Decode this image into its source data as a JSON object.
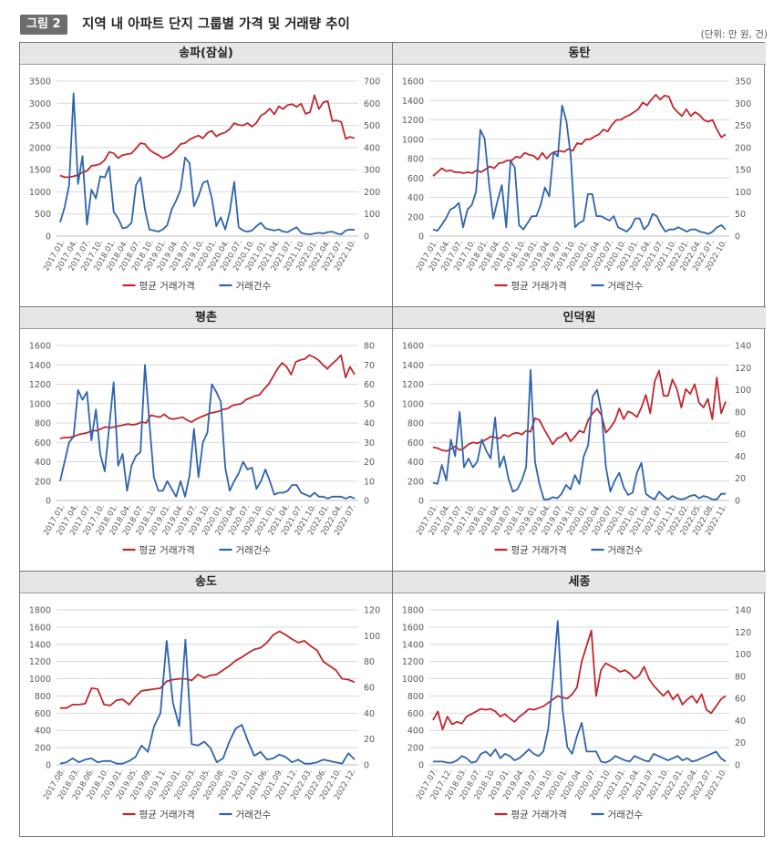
{
  "header": {
    "badge": "그림 2",
    "title": "지역 내 아파트 단지 그룹별 가격 및 거래량 추이",
    "unit": "(단위: 만 원, 건)"
  },
  "legend": {
    "price": "평균 거래가격",
    "count": "거래건수"
  },
  "colors": {
    "price": "#c0262d",
    "count": "#2e64ad"
  },
  "chart_data": [
    {
      "type": "line",
      "title": "송파(잠실)",
      "y_left": {
        "ticks": [
          0,
          500,
          1000,
          1500,
          2000,
          2500,
          3000,
          3500
        ],
        "max": 3500
      },
      "y_right": {
        "ticks": [
          0,
          100,
          200,
          300,
          400,
          500,
          600,
          700
        ],
        "max": 700
      },
      "x_ticks": [
        "2017.01.",
        "2017.04.",
        "2017.07.",
        "2017.10.",
        "2018.01.",
        "2018.04.",
        "2018.07.",
        "2018.10.",
        "2019.01.",
        "2019.04.",
        "2019.07.",
        "2019.10.",
        "2020.01.",
        "2020.04.",
        "2020.07.",
        "2020.10.",
        "2021.01.",
        "2021.04.",
        "2021.07.",
        "2021.10.",
        "2022.01.",
        "2022.04.",
        "2022.07.",
        "2022.10."
      ],
      "series": [
        {
          "name": "평균 거래가격",
          "axis": "left",
          "values": [
            1370,
            1330,
            1330,
            1350,
            1380,
            1440,
            1470,
            1590,
            1600,
            1630,
            1720,
            1900,
            1870,
            1760,
            1830,
            1850,
            1870,
            1980,
            2100,
            2080,
            1950,
            1880,
            1830,
            1760,
            1800,
            1860,
            1960,
            2080,
            2100,
            2180,
            2230,
            2270,
            2210,
            2330,
            2380,
            2250,
            2310,
            2340,
            2420,
            2550,
            2510,
            2500,
            2550,
            2470,
            2560,
            2720,
            2780,
            2880,
            2750,
            2930,
            2870,
            2960,
            2980,
            2920,
            2990,
            2760,
            2800,
            3180,
            2870,
            3020,
            3050,
            2600,
            2610,
            2580,
            2200,
            2240,
            2210
          ]
        },
        {
          "name": "거래건수",
          "axis": "right",
          "values": [
            62,
            130,
            230,
            645,
            235,
            362,
            52,
            210,
            170,
            270,
            265,
            315,
            110,
            80,
            35,
            40,
            60,
            230,
            265,
            120,
            30,
            25,
            20,
            30,
            50,
            120,
            160,
            210,
            355,
            330,
            135,
            180,
            240,
            250,
            170,
            45,
            85,
            30,
            110,
            245,
            40,
            25,
            20,
            25,
            45,
            60,
            35,
            30,
            25,
            30,
            20,
            18,
            30,
            40,
            15,
            10,
            8,
            12,
            15,
            12,
            18,
            20,
            12,
            8,
            25,
            30,
            28
          ]
        }
      ]
    },
    {
      "type": "line",
      "title": "동탄",
      "y_left": {
        "ticks": [
          0,
          200,
          400,
          600,
          800,
          1000,
          1200,
          1400,
          1600
        ],
        "max": 1600
      },
      "y_right": {
        "ticks": [
          0,
          50,
          100,
          150,
          200,
          250,
          300,
          350
        ],
        "max": 350
      },
      "x_ticks": [
        "2017.01.",
        "2017.04.",
        "2017.07.",
        "2017.10.",
        "2018.01.",
        "2018.04.",
        "2018.07.",
        "2018.10.",
        "2019.01.",
        "2019.04.",
        "2019.07.",
        "2019.10.",
        "2020.01.",
        "2020.04.",
        "2020.07.",
        "2020.10.",
        "2021.01.",
        "2021.04.",
        "2021.07.",
        "2021.10.",
        "2022.01.",
        "2022.04.",
        "2022.07.",
        "2022.10."
      ],
      "series": [
        {
          "name": "평균 거래가격",
          "axis": "left",
          "values": [
            620,
            660,
            700,
            670,
            680,
            660,
            660,
            650,
            660,
            650,
            680,
            660,
            690,
            720,
            700,
            750,
            760,
            780,
            780,
            820,
            810,
            860,
            840,
            830,
            790,
            860,
            800,
            850,
            870,
            880,
            870,
            900,
            880,
            960,
            950,
            1000,
            1000,
            1030,
            1050,
            1100,
            1080,
            1150,
            1200,
            1200,
            1230,
            1250,
            1280,
            1310,
            1380,
            1350,
            1410,
            1460,
            1410,
            1450,
            1440,
            1330,
            1280,
            1240,
            1310,
            1240,
            1280,
            1250,
            1200,
            1180,
            1200,
            1100,
            1020,
            1050
          ]
        },
        {
          "name": "거래건수",
          "axis": "right",
          "values": [
            15,
            12,
            25,
            40,
            60,
            65,
            75,
            20,
            60,
            70,
            100,
            240,
            220,
            120,
            40,
            80,
            115,
            20,
            170,
            155,
            25,
            15,
            30,
            45,
            45,
            70,
            110,
            90,
            190,
            180,
            295,
            260,
            180,
            20,
            30,
            35,
            95,
            95,
            45,
            45,
            40,
            35,
            45,
            20,
            15,
            10,
            20,
            40,
            40,
            15,
            25,
            50,
            45,
            25,
            10,
            15,
            15,
            20,
            15,
            10,
            15,
            15,
            10,
            8,
            5,
            10,
            20,
            25,
            15
          ]
        }
      ]
    },
    {
      "type": "line",
      "title": "평촌",
      "y_left": {
        "ticks": [
          0,
          200,
          400,
          600,
          800,
          1000,
          1200,
          1400,
          1600
        ],
        "max": 1600
      },
      "y_right": {
        "ticks": [
          0,
          10,
          20,
          30,
          40,
          50,
          60,
          70,
          80
        ],
        "max": 80
      },
      "x_ticks": [
        "2017.01.",
        "2017.04.",
        "2017.07.",
        "2017.10.",
        "2018.01.",
        "2018.04.",
        "2018.07.",
        "2018.10.",
        "2019.01.",
        "2019.04.",
        "2019.07.",
        "2019.10.",
        "2020.01.",
        "2020.04.",
        "2020.07.",
        "2020.10.",
        "2021.01.",
        "2021.04.",
        "2021.07.",
        "2021.10.",
        "2022.01.",
        "2022.04.",
        "2022.07."
      ],
      "series": [
        {
          "name": "평균 거래가격",
          "axis": "left",
          "values": [
            640,
            650,
            650,
            660,
            680,
            690,
            700,
            720,
            720,
            740,
            760,
            750,
            760,
            770,
            780,
            790,
            780,
            790,
            810,
            800,
            880,
            870,
            860,
            890,
            850,
            840,
            850,
            860,
            830,
            810,
            840,
            860,
            880,
            900,
            910,
            920,
            940,
            950,
            980,
            990,
            1000,
            1040,
            1060,
            1080,
            1090,
            1150,
            1200,
            1280,
            1360,
            1420,
            1380,
            1300,
            1430,
            1450,
            1460,
            1500,
            1480,
            1450,
            1400,
            1360,
            1410,
            1450,
            1500,
            1270,
            1380,
            1300
          ]
        },
        {
          "name": "거래건수",
          "axis": "right",
          "values": [
            10,
            20,
            30,
            33,
            57,
            52,
            56,
            31,
            47,
            24,
            15,
            38,
            61,
            18,
            24,
            5,
            18,
            23,
            25,
            70,
            40,
            12,
            5,
            5,
            10,
            6,
            2,
            10,
            2,
            13,
            37,
            12,
            30,
            35,
            60,
            56,
            51,
            17,
            5,
            10,
            14,
            20,
            16,
            17,
            6,
            10,
            16,
            10,
            3,
            4,
            4,
            5,
            8,
            8,
            4,
            3,
            2,
            4,
            2,
            2,
            1,
            2,
            2,
            2,
            1,
            2,
            1
          ]
        }
      ]
    },
    {
      "type": "line",
      "title": "인덕원",
      "y_left": {
        "ticks": [
          0,
          200,
          400,
          600,
          800,
          1000,
          1200,
          1400,
          1600
        ],
        "max": 1600
      },
      "y_right": {
        "ticks": [
          0,
          20,
          40,
          60,
          80,
          100,
          120,
          140
        ],
        "max": 140
      },
      "x_ticks": [
        "2017.01.",
        "2017.04.",
        "2017.07.",
        "2017.10.",
        "2018.01.",
        "2018.04.",
        "2018.07.",
        "2018.10.",
        "2019.01.",
        "2019.04.",
        "2019.07.",
        "2019.10.",
        "2020.01.",
        "2020.04.",
        "2020.07.",
        "2020.10.",
        "2021.01.",
        "2021.04.",
        "2021.07.",
        "2021.11.",
        "2022.02.",
        "2022.05.",
        "2022.08.",
        "2022.11."
      ],
      "series": [
        {
          "name": "평균 거래가격",
          "axis": "left",
          "values": [
            550,
            540,
            520,
            510,
            530,
            560,
            520,
            540,
            580,
            600,
            590,
            610,
            630,
            660,
            650,
            640,
            680,
            660,
            690,
            700,
            680,
            720,
            710,
            850,
            830,
            740,
            660,
            580,
            640,
            660,
            700,
            610,
            660,
            720,
            700,
            830,
            900,
            950,
            880,
            700,
            750,
            820,
            950,
            840,
            920,
            900,
            860,
            960,
            1090,
            900,
            1230,
            1340,
            1080,
            1080,
            1250,
            1150,
            960,
            1150,
            1100,
            1200,
            1010,
            960,
            1050,
            840,
            1270,
            900,
            1020
          ]
        },
        {
          "name": "거래건수",
          "axis": "right",
          "values": [
            16,
            15,
            32,
            18,
            55,
            40,
            80,
            30,
            38,
            30,
            35,
            55,
            45,
            38,
            75,
            30,
            40,
            20,
            8,
            10,
            18,
            30,
            118,
            35,
            15,
            1,
            1,
            3,
            2,
            6,
            14,
            10,
            23,
            15,
            40,
            50,
            94,
            100,
            80,
            30,
            8,
            18,
            25,
            12,
            5,
            7,
            25,
            34,
            6,
            3,
            1,
            8,
            4,
            1,
            4,
            2,
            1,
            2,
            4,
            5,
            2,
            4,
            3,
            1,
            1,
            6,
            6
          ]
        }
      ]
    },
    {
      "type": "line",
      "title": "송도",
      "y_left": {
        "ticks": [
          0,
          200,
          400,
          600,
          800,
          1000,
          1200,
          1400,
          1600,
          1800
        ],
        "max": 1800
      },
      "y_right": {
        "ticks": [
          0,
          20,
          40,
          60,
          80,
          100,
          120
        ],
        "max": 120
      },
      "x_ticks": [
        "2017.08.",
        "2018.03.",
        "2018.06.",
        "2018.10.",
        "2019.01.",
        "2019.05.",
        "2019.09.",
        "2019.11.",
        "2020.01.",
        "2020.03.",
        "2020.05.",
        "2020.08.",
        "2020.10.",
        "2021.01.",
        "2021.06.",
        "2021.09.",
        "2021.12.",
        "2022.03.",
        "2022.06.",
        "2022.10.",
        "2022.12."
      ],
      "series": [
        {
          "name": "평균 거래가격",
          "axis": "left",
          "values": [
            660,
            660,
            700,
            700,
            710,
            890,
            880,
            700,
            690,
            750,
            760,
            700,
            790,
            860,
            870,
            880,
            890,
            970,
            990,
            1000,
            1000,
            980,
            1050,
            1010,
            1040,
            1050,
            1100,
            1150,
            1210,
            1250,
            1300,
            1340,
            1360,
            1420,
            1510,
            1550,
            1510,
            1460,
            1420,
            1440,
            1380,
            1330,
            1200,
            1150,
            1100,
            1000,
            990,
            960
          ]
        },
        {
          "name": "거래건수",
          "axis": "right",
          "values": [
            1,
            2,
            5,
            2,
            4,
            5,
            2,
            3,
            3,
            1,
            1,
            3,
            6,
            15,
            10,
            30,
            40,
            96,
            48,
            30,
            97,
            16,
            15,
            18,
            13,
            2,
            5,
            18,
            28,
            31,
            18,
            7,
            10,
            4,
            5,
            8,
            6,
            2,
            4,
            1,
            1,
            2,
            4,
            3,
            2,
            1,
            9,
            4
          ]
        }
      ]
    },
    {
      "type": "line",
      "title": "세종",
      "y_left": {
        "ticks": [
          0,
          200,
          400,
          600,
          800,
          1000,
          1200,
          1400,
          1600,
          1800
        ],
        "max": 1800
      },
      "y_right": {
        "ticks": [
          0,
          20,
          40,
          60,
          80,
          100,
          120,
          140
        ],
        "max": 140
      },
      "x_ticks": [
        "2017.07.",
        "2017.12.",
        "2018.03.",
        "2018.07.",
        "2018.10.",
        "2019.01.",
        "2019.04.",
        "2019.07.",
        "2019.10.",
        "2020.01.",
        "2020.04.",
        "2020.07.",
        "2020.10.",
        "2021.01.",
        "2021.04.",
        "2021.07.",
        "2021.10.",
        "2022.01.",
        "2022.04.",
        "2022.07.",
        "2022.10."
      ],
      "series": [
        {
          "name": "평균 거래가격",
          "axis": "left",
          "values": [
            520,
            620,
            410,
            560,
            470,
            500,
            480,
            560,
            590,
            620,
            650,
            640,
            650,
            620,
            560,
            590,
            540,
            500,
            560,
            600,
            650,
            640,
            660,
            680,
            720,
            760,
            800,
            780,
            770,
            820,
            900,
            1200,
            1380,
            1560,
            800,
            1100,
            1180,
            1150,
            1120,
            1080,
            1100,
            1060,
            1000,
            1040,
            1140,
            1000,
            920,
            860,
            800,
            860,
            760,
            820,
            700,
            760,
            800,
            720,
            820,
            640,
            600,
            680,
            760,
            800
          ]
        },
        {
          "name": "거래건수",
          "axis": "right",
          "values": [
            3,
            3,
            3,
            2,
            2,
            4,
            8,
            6,
            2,
            3,
            10,
            12,
            8,
            14,
            6,
            10,
            8,
            4,
            6,
            10,
            14,
            10,
            8,
            12,
            32,
            78,
            130,
            50,
            16,
            10,
            26,
            38,
            12,
            12,
            12,
            3,
            2,
            4,
            8,
            6,
            4,
            3,
            8,
            6,
            4,
            3,
            10,
            8,
            6,
            4,
            6,
            8,
            4,
            6,
            3,
            4,
            6,
            8,
            10,
            12,
            6,
            3
          ]
        }
      ]
    }
  ]
}
